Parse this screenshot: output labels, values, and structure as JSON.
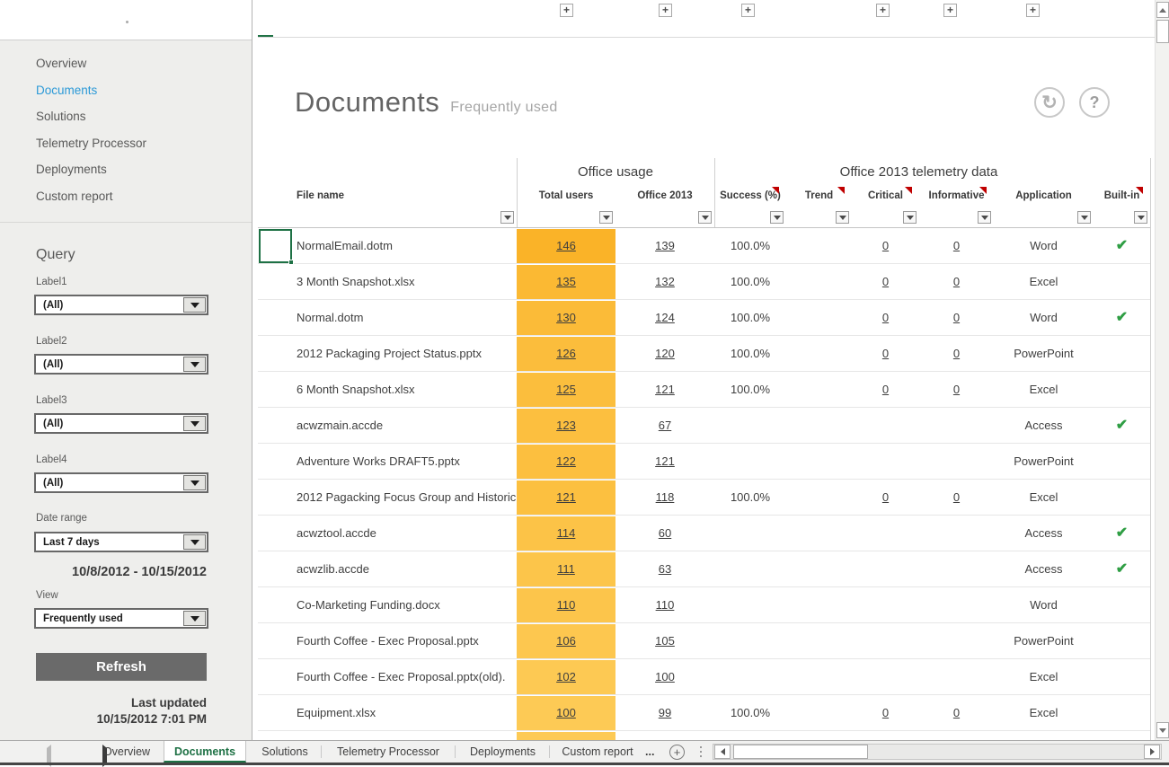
{
  "accent": {
    "excel_green": "#217346",
    "nav_blue": "#2b99d7",
    "heat_high": "#fab328",
    "heat_low": "#fdca55",
    "check_green": "#2f9e44",
    "comment_red": "#c00000"
  },
  "icons": {
    "refresh": "↻",
    "help": "?",
    "check": "✔",
    "plus": "+",
    "ellipsis": "...",
    "outline_expand": "+"
  },
  "sidebar": {
    "nav_items": [
      {
        "label": "Overview",
        "active": false
      },
      {
        "label": "Documents",
        "active": true
      },
      {
        "label": "Solutions",
        "active": false
      },
      {
        "label": "Telemetry Processor",
        "active": false
      },
      {
        "label": "Deployments",
        "active": false
      },
      {
        "label": "Custom report",
        "active": false
      }
    ],
    "query": {
      "title": "Query",
      "filters": [
        {
          "label": "Label1",
          "value": "(All)"
        },
        {
          "label": "Label2",
          "value": "(All)"
        },
        {
          "label": "Label3",
          "value": "(All)"
        },
        {
          "label": "Label4",
          "value": "(All)"
        }
      ],
      "date_range_label": "Date range",
      "date_range_value": "Last 7 days",
      "date_range_text": "10/8/2012 - 10/15/2012",
      "view_label": "View",
      "view_value": "Frequently used",
      "refresh_label": "Refresh",
      "last_updated_label": "Last updated",
      "last_updated_value": "10/15/2012 7:01 PM"
    }
  },
  "main": {
    "title": "Documents",
    "subtitle": "Frequently used",
    "column_groups": [
      {
        "label": "Office usage"
      },
      {
        "label": "Office 2013 telemetry data"
      }
    ],
    "columns": [
      {
        "label": "File name",
        "comment": false
      },
      {
        "label": "Total users",
        "comment": false
      },
      {
        "label": "Office 2013",
        "comment": false
      },
      {
        "label": "Success (%)",
        "comment": true
      },
      {
        "label": "Trend",
        "comment": true
      },
      {
        "label": "Critical",
        "comment": true
      },
      {
        "label": "Informative",
        "comment": true
      },
      {
        "label": "Application",
        "comment": false
      },
      {
        "label": "Built-in",
        "comment": true
      }
    ],
    "rows": [
      {
        "file_name": "NormalEmail.dotm",
        "total_users": "146",
        "office_2013": "139",
        "success": "100.0%",
        "trend": "",
        "critical": "0",
        "informative": "0",
        "application": "Word",
        "built_in": true
      },
      {
        "file_name": "3 Month Snapshot.xlsx",
        "total_users": "135",
        "office_2013": "132",
        "success": "100.0%",
        "trend": "",
        "critical": "0",
        "informative": "0",
        "application": "Excel",
        "built_in": false
      },
      {
        "file_name": "Normal.dotm",
        "total_users": "130",
        "office_2013": "124",
        "success": "100.0%",
        "trend": "",
        "critical": "0",
        "informative": "0",
        "application": "Word",
        "built_in": true
      },
      {
        "file_name": "2012 Packaging Project Status.pptx",
        "total_users": "126",
        "office_2013": "120",
        "success": "100.0%",
        "trend": "",
        "critical": "0",
        "informative": "0",
        "application": "PowerPoint",
        "built_in": false
      },
      {
        "file_name": "6 Month Snapshot.xlsx",
        "total_users": "125",
        "office_2013": "121",
        "success": "100.0%",
        "trend": "",
        "critical": "0",
        "informative": "0",
        "application": "Excel",
        "built_in": false
      },
      {
        "file_name": "acwzmain.accde",
        "total_users": "123",
        "office_2013": "67",
        "success": "",
        "trend": "",
        "critical": "",
        "informative": "",
        "application": "Access",
        "built_in": true
      },
      {
        "file_name": "Adventure Works DRAFT5.pptx",
        "total_users": "122",
        "office_2013": "121",
        "success": "",
        "trend": "",
        "critical": "",
        "informative": "",
        "application": "PowerPoint",
        "built_in": false
      },
      {
        "file_name": "2012 Pagacking Focus Group and Historic",
        "total_users": "121",
        "office_2013": "118",
        "success": "100.0%",
        "trend": "",
        "critical": "0",
        "informative": "0",
        "application": "Excel",
        "built_in": false
      },
      {
        "file_name": "acwztool.accde",
        "total_users": "114",
        "office_2013": "60",
        "success": "",
        "trend": "",
        "critical": "",
        "informative": "",
        "application": "Access",
        "built_in": true
      },
      {
        "file_name": "acwzlib.accde",
        "total_users": "111",
        "office_2013": "63",
        "success": "",
        "trend": "",
        "critical": "",
        "informative": "",
        "application": "Access",
        "built_in": true
      },
      {
        "file_name": "Co-Marketing Funding.docx",
        "total_users": "110",
        "office_2013": "110",
        "success": "",
        "trend": "",
        "critical": "",
        "informative": "",
        "application": "Word",
        "built_in": false
      },
      {
        "file_name": "Fourth Coffee - Exec Proposal.pptx",
        "total_users": "106",
        "office_2013": "105",
        "success": "",
        "trend": "",
        "critical": "",
        "informative": "",
        "application": "PowerPoint",
        "built_in": false
      },
      {
        "file_name": "Fourth Coffee - Exec Proposal.pptx(old).",
        "total_users": "102",
        "office_2013": "100",
        "success": "",
        "trend": "",
        "critical": "",
        "informative": "",
        "application": "Excel",
        "built_in": false
      },
      {
        "file_name": "Equipment.xlsx",
        "total_users": "100",
        "office_2013": "99",
        "success": "100.0%",
        "trend": "",
        "critical": "0",
        "informative": "0",
        "application": "Excel",
        "built_in": false
      }
    ]
  },
  "sheet_tabs": {
    "tabs": [
      {
        "label": "Overview",
        "active": false
      },
      {
        "label": "Documents",
        "active": true
      },
      {
        "label": "Solutions",
        "active": false
      },
      {
        "label": "Telemetry Processor",
        "active": false
      },
      {
        "label": "Deployments",
        "active": false
      },
      {
        "label": "Custom report",
        "active": false
      }
    ],
    "overflow_label": "..."
  }
}
